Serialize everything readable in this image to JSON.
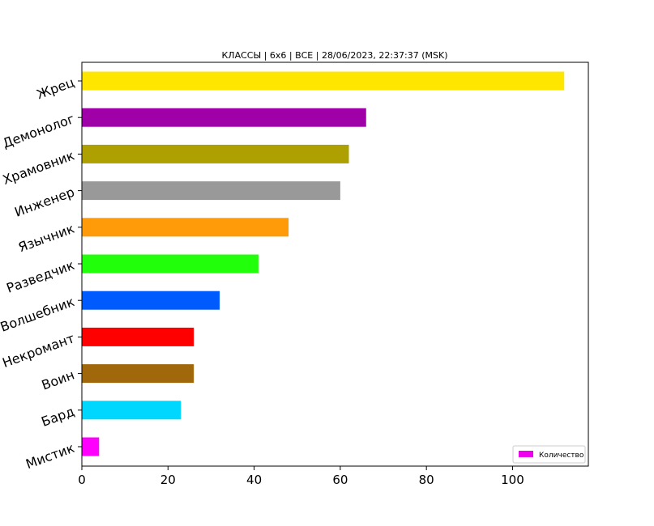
{
  "chart_data": {
    "type": "bar",
    "orientation": "horizontal",
    "title": "КЛАССЫ | 6x6 | ВСЕ | 28/06/2023, 22:37:37 (MSK)",
    "xlabel": "",
    "ylabel": "",
    "categories": [
      "Мистик",
      "Бард",
      "Воин",
      "Некромант",
      "Волшебник",
      "Разведчик",
      "Язычник",
      "Инженер",
      "Храмовник",
      "Демонолог",
      "Жрец"
    ],
    "values": [
      4,
      23,
      26,
      26,
      32,
      41,
      48,
      60,
      62,
      66,
      112
    ],
    "colors": [
      "#ff00ff",
      "#00d7ff",
      "#a0670b",
      "#ff0000",
      "#005bff",
      "#22ff0a",
      "#ff9a09",
      "#999999",
      "#aea000",
      "#a000a8",
      "#ffe600"
    ],
    "xlim": [
      0,
      117.6
    ],
    "xticks": [
      0,
      20,
      40,
      60,
      80,
      100
    ],
    "grid": false,
    "legend": {
      "position": "bottom-right",
      "label": "Количество",
      "color": "#ee00ee"
    }
  }
}
